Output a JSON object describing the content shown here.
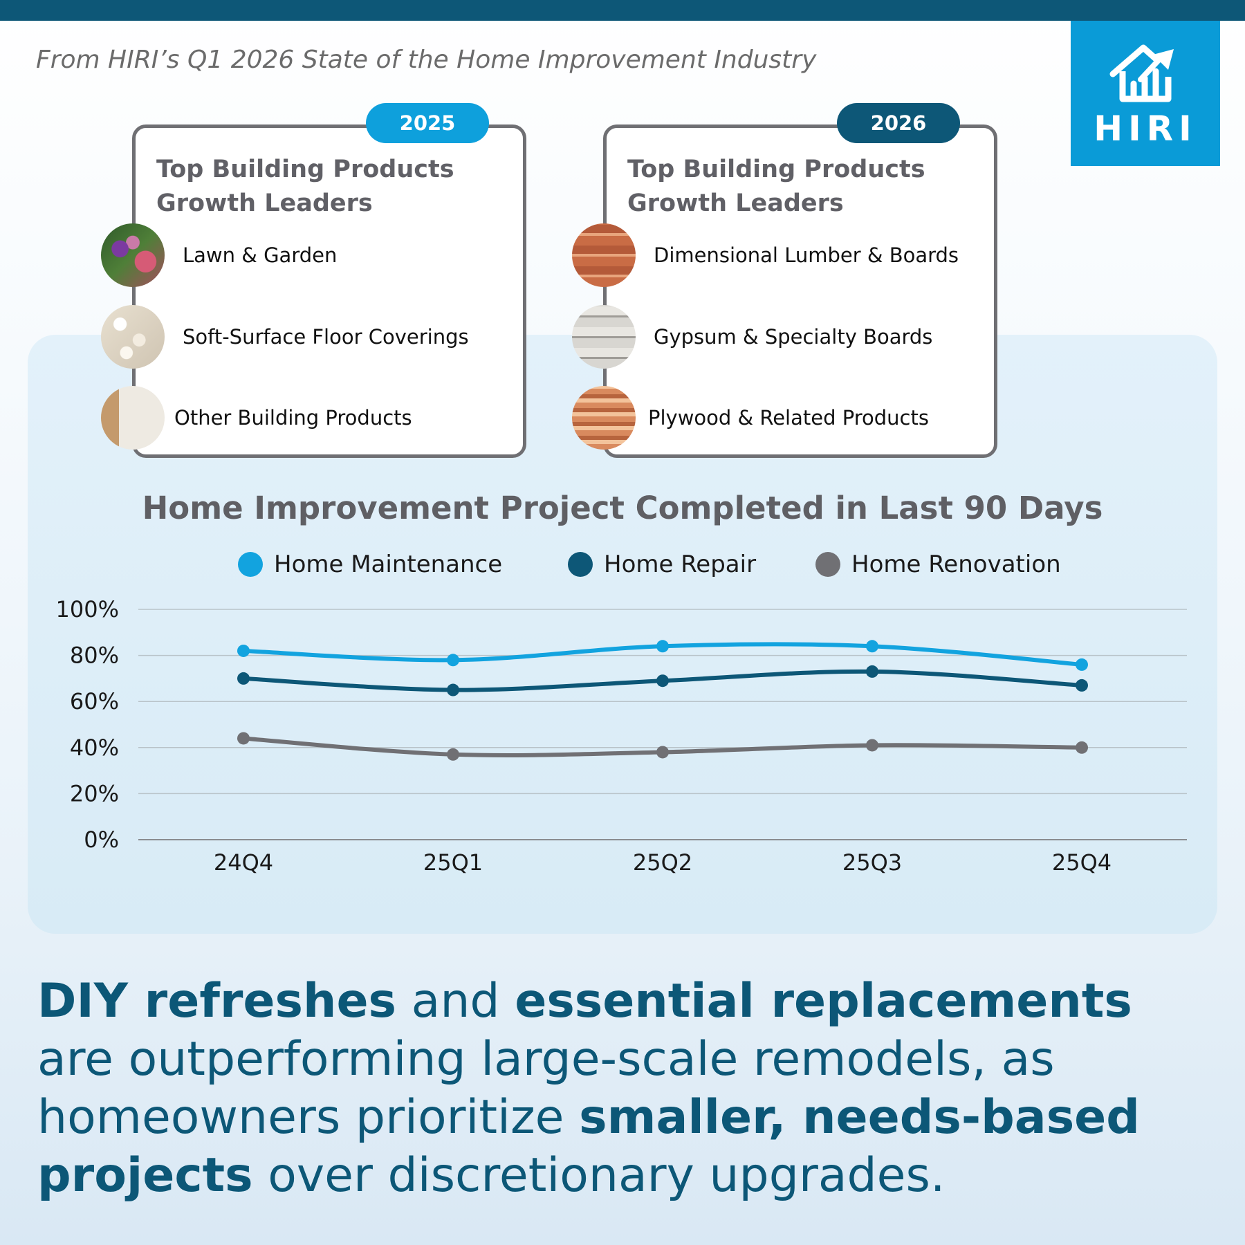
{
  "source": "From HIRI’s Q1 2026 State of the Home Improvement Industry",
  "logo": {
    "text": "HIRI"
  },
  "cards": [
    {
      "year": "2025",
      "title_line1": "Top Building Products",
      "title_line2": "Growth Leaders",
      "items": [
        "Lawn & Garden",
        "Soft-Surface Floor Coverings",
        "Other Building Products"
      ]
    },
    {
      "year": "2026",
      "title_line1": "Top Building Products",
      "title_line2": "Growth Leaders",
      "items": [
        "Dimensional Lumber & Boards",
        "Gypsum & Specialty Boards",
        "Plywood & Related Products"
      ]
    }
  ],
  "chart_data": {
    "type": "line",
    "title": "Home Improvement Project Completed in Last 90 Days",
    "categories": [
      "24Q4",
      "25Q1",
      "25Q2",
      "25Q3",
      "25Q4"
    ],
    "ylim": [
      0,
      100
    ],
    "yticks": [
      "0%",
      "20%",
      "40%",
      "60%",
      "80%",
      "100%"
    ],
    "grid": true,
    "legend_position": "top",
    "series": [
      {
        "name": "Home Maintenance",
        "color": "#12a3df",
        "values": [
          82,
          78,
          84,
          84,
          76
        ]
      },
      {
        "name": "Home Repair",
        "color": "#0d5777",
        "values": [
          70,
          65,
          69,
          73,
          67
        ]
      },
      {
        "name": "Home Renovation",
        "color": "#707074",
        "values": [
          44,
          37,
          38,
          41,
          40
        ]
      }
    ]
  },
  "headline": {
    "p1": "DIY refreshes",
    "p2": " and ",
    "p3": "essential replacements",
    "p4": " are outperforming large-scale remodels, as homeowners prioritize ",
    "p5": "smaller, needs-based projects",
    "p6": " over discretionary upgrades."
  }
}
